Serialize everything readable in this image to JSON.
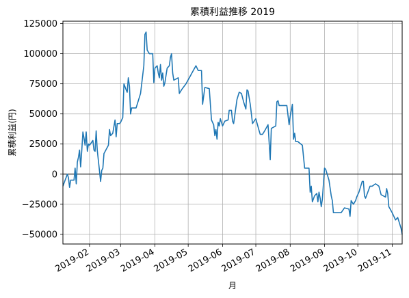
{
  "chart_data": {
    "type": "line",
    "title": "累積利益推移 2019",
    "xlabel": "月",
    "ylabel": "累積利益(円)",
    "xlim": [
      "2019-01-08",
      "2019-11-10"
    ],
    "ylim": [
      -58000,
      127000
    ],
    "y_ticks": [
      -50000,
      -25000,
      0,
      25000,
      50000,
      75000,
      100000,
      125000
    ],
    "y_tick_labels": [
      "−50000",
      "−25000",
      "0",
      "25000",
      "50000",
      "75000",
      "100000",
      "125000"
    ],
    "x_ticks": [
      "2019-02-01",
      "2019-03-01",
      "2019-04-01",
      "2019-05-01",
      "2019-06-01",
      "2019-07-01",
      "2019-08-01",
      "2019-09-01",
      "2019-10-01",
      "2019-11-01"
    ],
    "x_tick_labels": [
      "2019-02",
      "2019-03",
      "2019-04",
      "2019-05",
      "2019-06",
      "2019-07",
      "2019-08",
      "2019-09",
      "2019-10",
      "2019-11"
    ],
    "grid": true,
    "zero_line": true,
    "series": [
      {
        "color": "#1f77b4",
        "points": [
          [
            "2019-01-08",
            -10000
          ],
          [
            "2019-01-10",
            -5000
          ],
          [
            "2019-01-12",
            0
          ],
          [
            "2019-01-13",
            -3000
          ],
          [
            "2019-01-14",
            -11000
          ],
          [
            "2019-01-15",
            -5000
          ],
          [
            "2019-01-18",
            -5000
          ],
          [
            "2019-01-19",
            5000
          ],
          [
            "2019-01-20",
            -8000
          ],
          [
            "2019-01-21",
            10000
          ],
          [
            "2019-01-22",
            14000
          ],
          [
            "2019-01-23",
            20000
          ],
          [
            "2019-01-24",
            6000
          ],
          [
            "2019-01-25",
            20000
          ],
          [
            "2019-01-26",
            35000
          ],
          [
            "2019-01-27",
            30000
          ],
          [
            "2019-01-28",
            24000
          ],
          [
            "2019-01-29",
            35000
          ],
          [
            "2019-01-30",
            19000
          ],
          [
            "2019-01-31",
            25000
          ],
          [
            "2019-02-01",
            24000
          ],
          [
            "2019-02-04",
            28000
          ],
          [
            "2019-02-05",
            20000
          ],
          [
            "2019-02-06",
            19000
          ],
          [
            "2019-02-07",
            36000
          ],
          [
            "2019-02-08",
            20000
          ],
          [
            "2019-02-11",
            -6000
          ],
          [
            "2019-02-12",
            3000
          ],
          [
            "2019-02-13",
            5000
          ],
          [
            "2019-02-14",
            17000
          ],
          [
            "2019-02-18",
            24000
          ],
          [
            "2019-02-19",
            37000
          ],
          [
            "2019-02-20",
            32000
          ],
          [
            "2019-02-22",
            34000
          ],
          [
            "2019-02-24",
            45000
          ],
          [
            "2019-02-25",
            31000
          ],
          [
            "2019-02-26",
            42000
          ],
          [
            "2019-02-28",
            42000
          ],
          [
            "2019-03-01",
            43000
          ],
          [
            "2019-03-03",
            47000
          ],
          [
            "2019-03-04",
            75000
          ],
          [
            "2019-03-06",
            70000
          ],
          [
            "2019-03-07",
            68000
          ],
          [
            "2019-03-08",
            80000
          ],
          [
            "2019-03-09",
            73000
          ],
          [
            "2019-03-10",
            50000
          ],
          [
            "2019-03-11",
            55000
          ],
          [
            "2019-03-15",
            55000
          ],
          [
            "2019-03-19",
            67000
          ],
          [
            "2019-03-22",
            90000
          ],
          [
            "2019-03-23",
            116000
          ],
          [
            "2019-03-24",
            118000
          ],
          [
            "2019-03-25",
            103000
          ],
          [
            "2019-03-27",
            100000
          ],
          [
            "2019-03-30",
            100000
          ],
          [
            "2019-03-31",
            76000
          ],
          [
            "2019-04-01",
            88000
          ],
          [
            "2019-04-03",
            90000
          ],
          [
            "2019-04-04",
            84000
          ],
          [
            "2019-04-05",
            80000
          ],
          [
            "2019-04-06",
            91000
          ],
          [
            "2019-04-07",
            78000
          ],
          [
            "2019-04-08",
            84000
          ],
          [
            "2019-04-09",
            73000
          ],
          [
            "2019-04-10",
            76000
          ],
          [
            "2019-04-12",
            88000
          ],
          [
            "2019-04-14",
            90000
          ],
          [
            "2019-04-15",
            97000
          ],
          [
            "2019-04-16",
            100000
          ],
          [
            "2019-04-17",
            84000
          ],
          [
            "2019-04-18",
            78000
          ],
          [
            "2019-04-22",
            80000
          ],
          [
            "2019-04-23",
            67000
          ],
          [
            "2019-04-25",
            70000
          ],
          [
            "2019-04-29",
            75000
          ],
          [
            "2019-05-02",
            80000
          ],
          [
            "2019-05-05",
            85000
          ],
          [
            "2019-05-08",
            90000
          ],
          [
            "2019-05-10",
            86000
          ],
          [
            "2019-05-13",
            86000
          ],
          [
            "2019-05-14",
            58000
          ],
          [
            "2019-05-16",
            72000
          ],
          [
            "2019-05-20",
            71000
          ],
          [
            "2019-05-22",
            45000
          ],
          [
            "2019-05-24",
            41000
          ],
          [
            "2019-05-25",
            32000
          ],
          [
            "2019-05-26",
            37000
          ],
          [
            "2019-05-27",
            29000
          ],
          [
            "2019-05-28",
            43000
          ],
          [
            "2019-05-29",
            40000
          ],
          [
            "2019-05-30",
            46000
          ],
          [
            "2019-06-01",
            40000
          ],
          [
            "2019-06-03",
            44000
          ],
          [
            "2019-06-06",
            45000
          ],
          [
            "2019-06-07",
            53000
          ],
          [
            "2019-06-09",
            53000
          ],
          [
            "2019-06-10",
            44000
          ],
          [
            "2019-06-11",
            42000
          ],
          [
            "2019-06-14",
            62000
          ],
          [
            "2019-06-16",
            68000
          ],
          [
            "2019-06-18",
            67000
          ],
          [
            "2019-06-20",
            60000
          ],
          [
            "2019-06-22",
            54000
          ],
          [
            "2019-06-23",
            70000
          ],
          [
            "2019-06-24",
            69000
          ],
          [
            "2019-06-26",
            58000
          ],
          [
            "2019-06-28",
            42000
          ],
          [
            "2019-07-01",
            46000
          ],
          [
            "2019-07-04",
            36000
          ],
          [
            "2019-07-05",
            33000
          ],
          [
            "2019-07-07",
            33000
          ],
          [
            "2019-07-09",
            36000
          ],
          [
            "2019-07-12",
            41000
          ],
          [
            "2019-07-14",
            12000
          ],
          [
            "2019-07-15",
            38000
          ],
          [
            "2019-07-19",
            40000
          ],
          [
            "2019-07-20",
            60000
          ],
          [
            "2019-07-21",
            61000
          ],
          [
            "2019-07-22",
            57000
          ],
          [
            "2019-07-29",
            57000
          ],
          [
            "2019-07-31",
            41000
          ],
          [
            "2019-08-01",
            48000
          ],
          [
            "2019-08-03",
            58000
          ],
          [
            "2019-08-04",
            29000
          ],
          [
            "2019-08-05",
            34000
          ],
          [
            "2019-08-06",
            27000
          ],
          [
            "2019-08-08",
            27000
          ],
          [
            "2019-08-12",
            24000
          ],
          [
            "2019-08-14",
            5000
          ],
          [
            "2019-08-18",
            5000
          ],
          [
            "2019-08-19",
            -15000
          ],
          [
            "2019-08-20",
            -10000
          ],
          [
            "2019-08-21",
            -23000
          ],
          [
            "2019-08-23",
            -18000
          ],
          [
            "2019-08-25",
            -16000
          ],
          [
            "2019-08-26",
            -23000
          ],
          [
            "2019-08-27",
            -15000
          ],
          [
            "2019-08-28",
            -20000
          ],
          [
            "2019-08-29",
            -27000
          ],
          [
            "2019-08-30",
            -21000
          ],
          [
            "2019-09-01",
            5000
          ],
          [
            "2019-09-02",
            4000
          ],
          [
            "2019-09-05",
            -5000
          ],
          [
            "2019-09-07",
            -18000
          ],
          [
            "2019-09-08",
            -22000
          ],
          [
            "2019-09-09",
            -32000
          ],
          [
            "2019-09-16",
            -32000
          ],
          [
            "2019-09-19",
            -28000
          ],
          [
            "2019-09-23",
            -29000
          ],
          [
            "2019-09-24",
            -35000
          ],
          [
            "2019-09-25",
            -22000
          ],
          [
            "2019-09-27",
            -25000
          ],
          [
            "2019-09-29",
            -22000
          ],
          [
            "2019-09-30",
            -19000
          ],
          [
            "2019-10-02",
            -15000
          ],
          [
            "2019-10-05",
            -6000
          ],
          [
            "2019-10-06",
            -6000
          ],
          [
            "2019-10-07",
            -18000
          ],
          [
            "2019-10-08",
            -20000
          ],
          [
            "2019-10-12",
            -10000
          ],
          [
            "2019-10-14",
            -10000
          ],
          [
            "2019-10-17",
            -8000
          ],
          [
            "2019-10-20",
            -10000
          ],
          [
            "2019-10-22",
            -17000
          ],
          [
            "2019-10-26",
            -19000
          ],
          [
            "2019-10-27",
            -12000
          ],
          [
            "2019-10-28",
            -16000
          ],
          [
            "2019-10-29",
            -27000
          ],
          [
            "2019-11-01",
            -32000
          ],
          [
            "2019-11-04",
            -38000
          ],
          [
            "2019-11-06",
            -36000
          ],
          [
            "2019-11-09",
            -45000
          ],
          [
            "2019-11-10",
            -50000
          ]
        ]
      }
    ]
  }
}
